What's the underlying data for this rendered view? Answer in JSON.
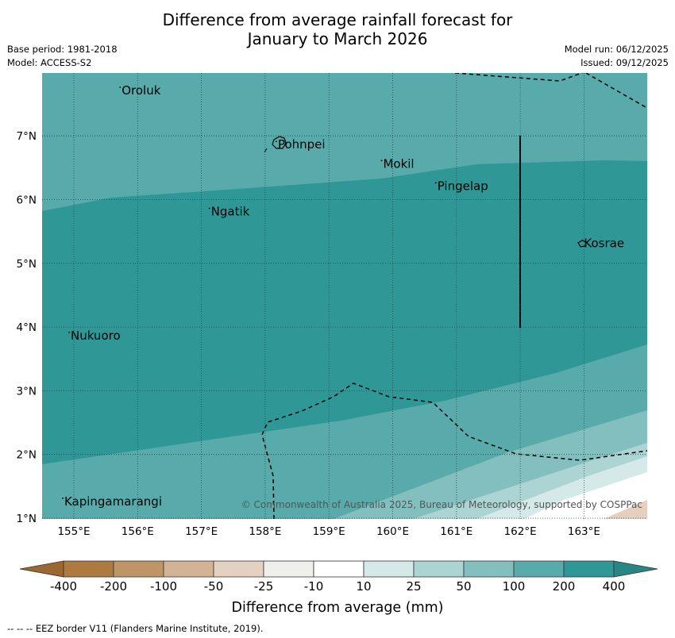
{
  "title": {
    "line1": "Difference from average rainfall forecast for",
    "line2": "January to March 2026"
  },
  "meta": {
    "base_period": "Base period: 1981-2018",
    "model": "Model: ACCESS-S2",
    "model_run": "Model run: 06/12/2025",
    "issued": "Issued: 09/12/2025"
  },
  "map": {
    "lon_ticks": [
      "155°E",
      "156°E",
      "157°E",
      "158°E",
      "159°E",
      "160°E",
      "161°E",
      "162°E",
      "163°E"
    ],
    "lat_ticks": [
      "1°N",
      "2°N",
      "3°N",
      "4°N",
      "5°N",
      "6°N",
      "7°N"
    ],
    "places": [
      {
        "name": "Oroluk",
        "lon": 155.75,
        "lat": 7.7
      },
      {
        "name": "Pohnpei",
        "lon": 158.2,
        "lat": 6.85
      },
      {
        "name": "Mokil",
        "lon": 159.85,
        "lat": 6.55
      },
      {
        "name": "Pingelap",
        "lon": 160.7,
        "lat": 6.2
      },
      {
        "name": "Ngatik",
        "lon": 157.15,
        "lat": 5.8
      },
      {
        "name": "Kosrae",
        "lon": 163.0,
        "lat": 5.3
      },
      {
        "name": "Nukuoro",
        "lon": 154.95,
        "lat": 3.85
      },
      {
        "name": "Kapingamarangi",
        "lon": 154.85,
        "lat": 1.25
      }
    ],
    "copyright": "© Commonwealth of Australia 2025, Bureau of Meteorology, supported by COSPPac",
    "colors": {
      "above_200": "#2f9896",
      "100_200": "#59aaab",
      "50_100": "#83bfbe",
      "25_50": "#acd4d3",
      "10_25": "#d4e9e8",
      "neutral": "#ffffff",
      "below_neg25": "#e6cfbe"
    }
  },
  "colorbar": {
    "labels": [
      "-400",
      "-200",
      "-100",
      "-50",
      "-25",
      "-10",
      "10",
      "25",
      "50",
      "100",
      "200",
      "400"
    ],
    "colors": [
      "#ad7a40",
      "#bf9568",
      "#d3b395",
      "#e4d1c2",
      "#efefec",
      "#ffffff",
      "#d4e9e8",
      "#acd4d3",
      "#83bfbe",
      "#59aaab",
      "#2f9896"
    ],
    "end_low_color": "#9a6830",
    "end_high_color": "#2a8684",
    "title": "Difference from average (mm)"
  },
  "footnote": "--  --  -- EEZ border V11 (Flanders Marine Institute, 2019)."
}
